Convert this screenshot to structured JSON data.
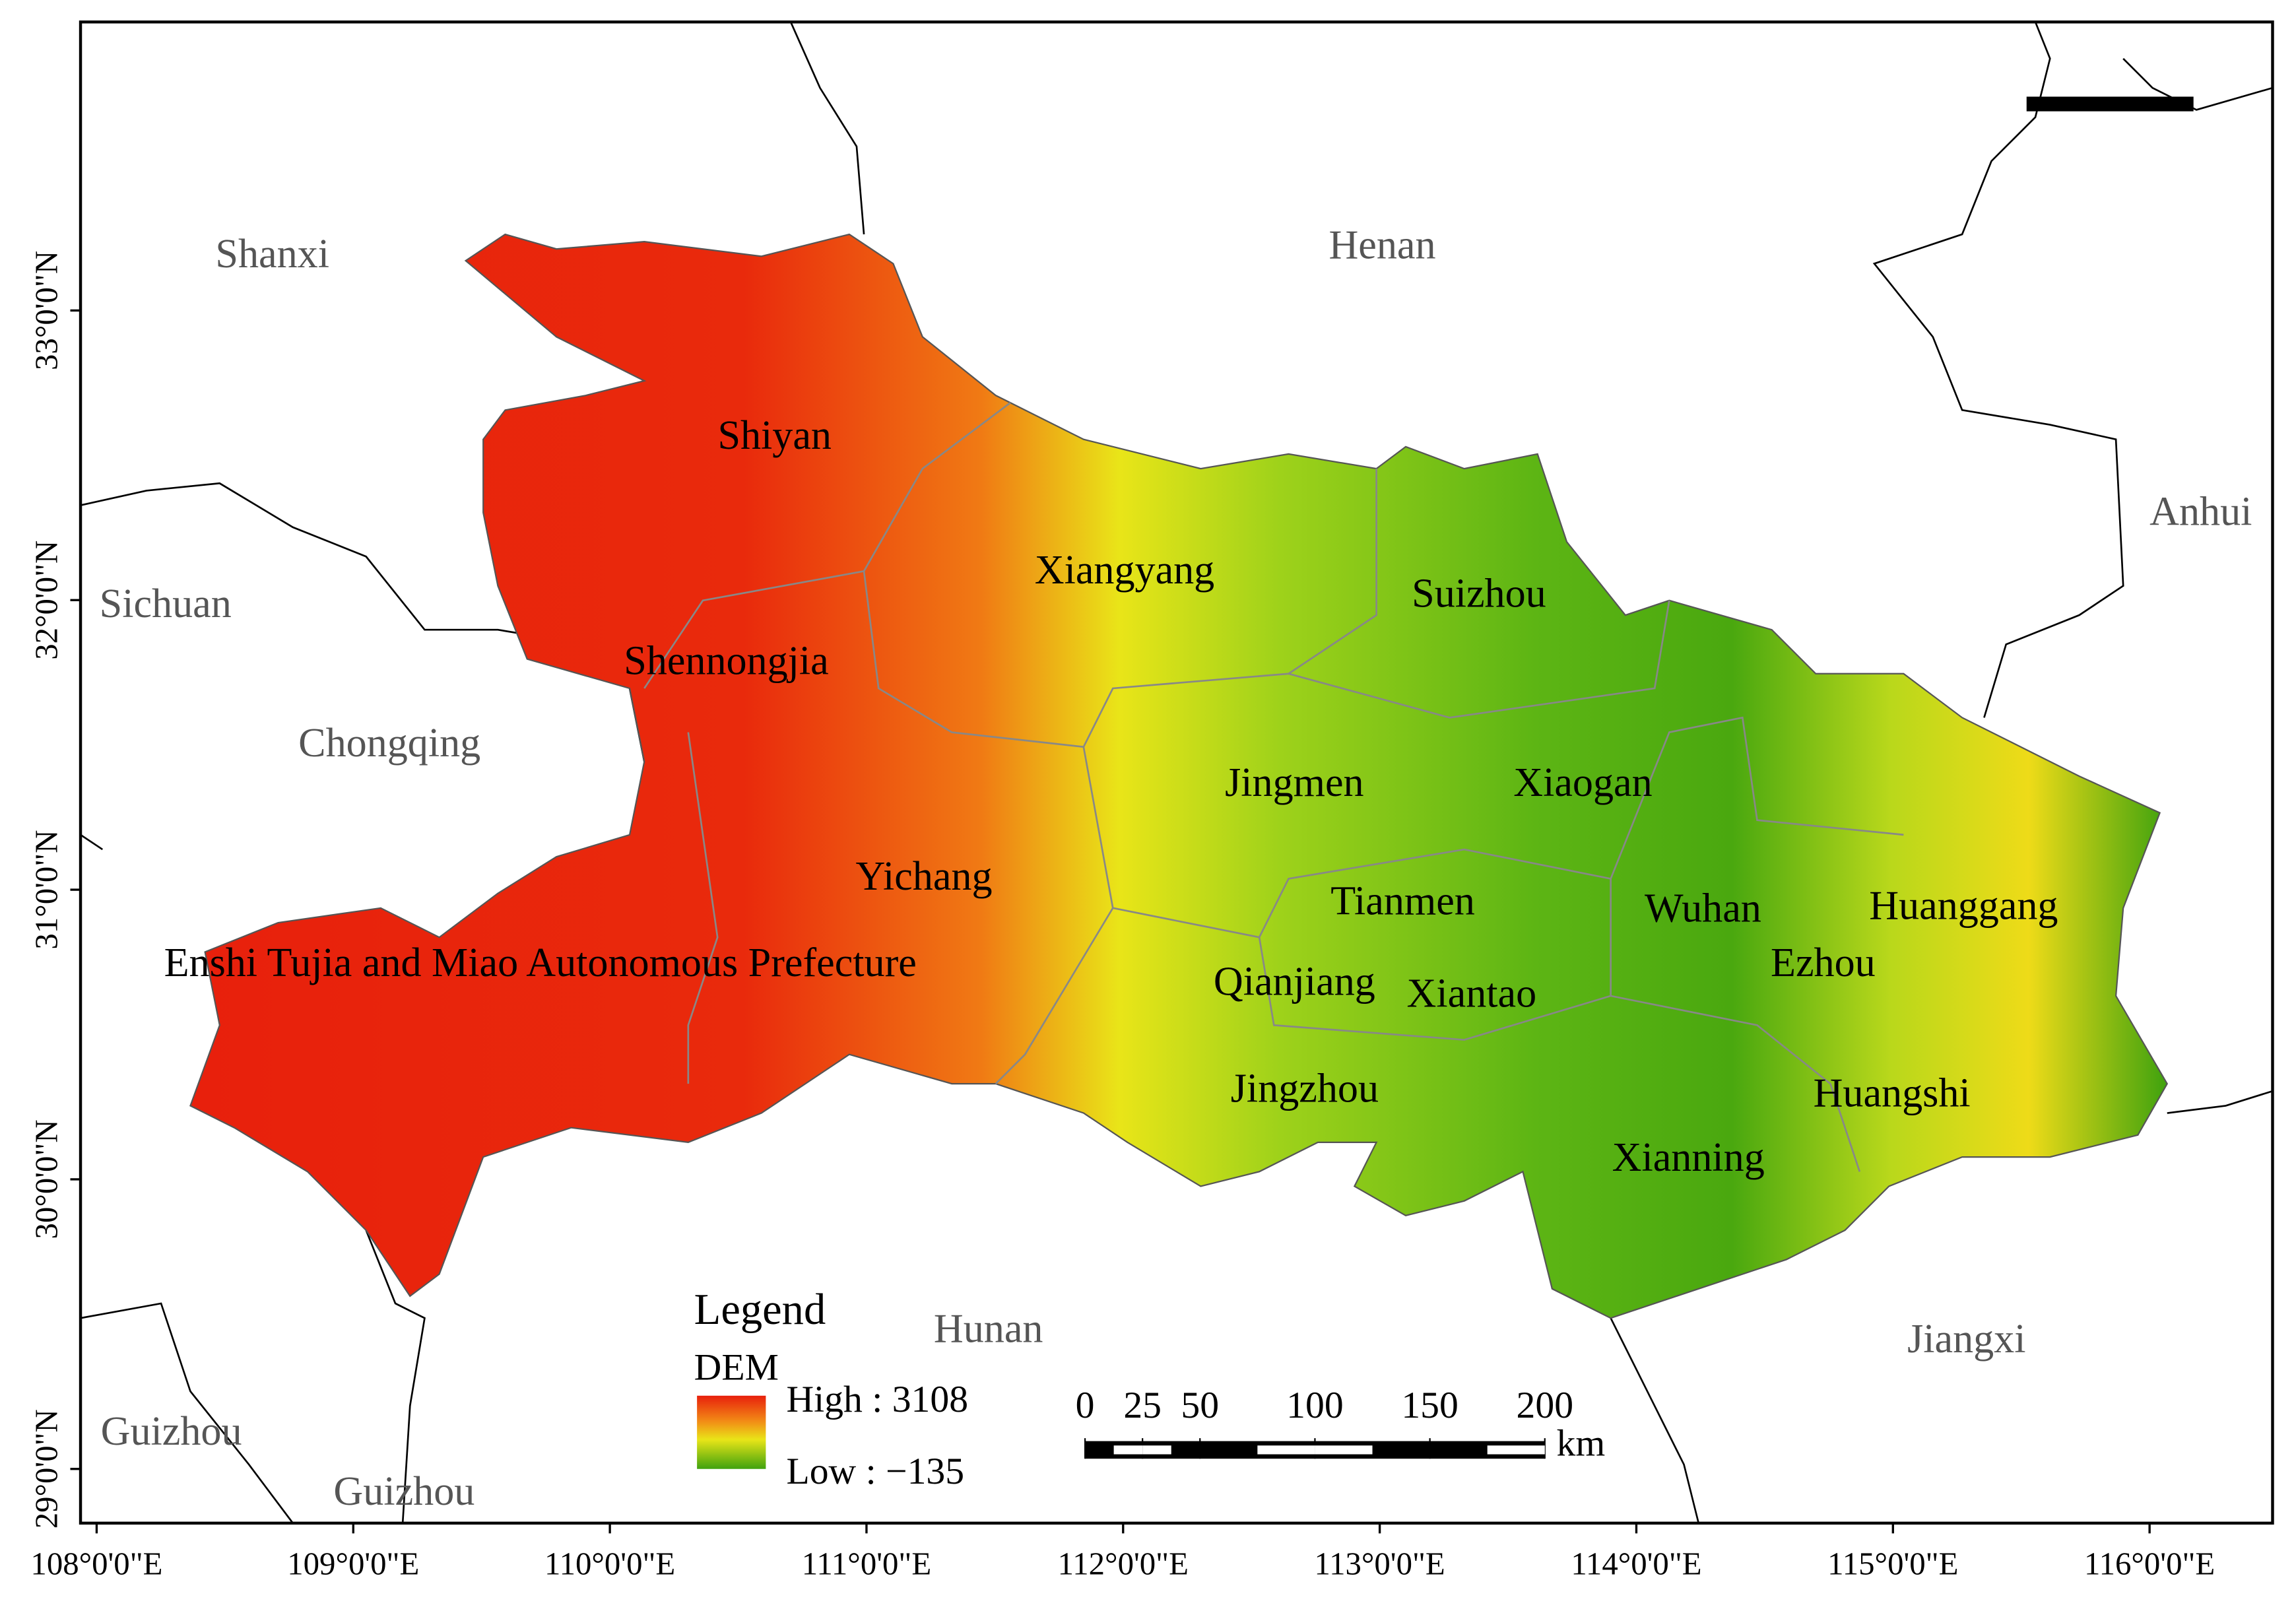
{
  "axes": {
    "xticks": [
      {
        "value": 108,
        "label": "108°0'0\"E"
      },
      {
        "value": 109,
        "label": "109°0'0\"E"
      },
      {
        "value": 110,
        "label": "110°0'0\"E"
      },
      {
        "value": 111,
        "label": "111°0'0\"E"
      },
      {
        "value": 112,
        "label": "112°0'0\"E"
      },
      {
        "value": 113,
        "label": "113°0'0\"E"
      },
      {
        "value": 114,
        "label": "114°0'0\"E"
      },
      {
        "value": 115,
        "label": "115°0'0\"E"
      },
      {
        "value": 116,
        "label": "116°0'0\"E"
      }
    ],
    "yticks": [
      {
        "value": 29,
        "label": "29°0'0\"N"
      },
      {
        "value": 30,
        "label": "30°0'0\"N"
      },
      {
        "value": 31,
        "label": "31°0'0\"N"
      },
      {
        "value": 32,
        "label": "32°0'0\"N"
      },
      {
        "value": 33,
        "label": "33°0'0\"N"
      }
    ]
  },
  "neighbors": [
    "Shanxi",
    "Henan",
    "Anhui",
    "Sichuan",
    "Chongqing",
    "Hunan",
    "Jiangxi",
    "Guizhou",
    "Guizhou"
  ],
  "cities": [
    "Shiyan",
    "Xiangyang",
    "Suizhou",
    "Shennongjia",
    "Jingmen",
    "Xiaogan",
    "Yichang",
    "Tianmen",
    "Wuhan",
    "Huanggang",
    "Enshi Tujia and Miao Autonomous Prefecture",
    "Ezhou",
    "Qianjiang",
    "Xiantao",
    "Jingzhou",
    "Huangshi",
    "Xianning"
  ],
  "legend": {
    "title": "Legend",
    "field": "DEM",
    "high": "High : 3108",
    "low": "Low : −135"
  },
  "scale_bar": {
    "ticks": [
      0,
      25,
      50,
      100,
      150,
      200
    ],
    "unit": "km"
  }
}
